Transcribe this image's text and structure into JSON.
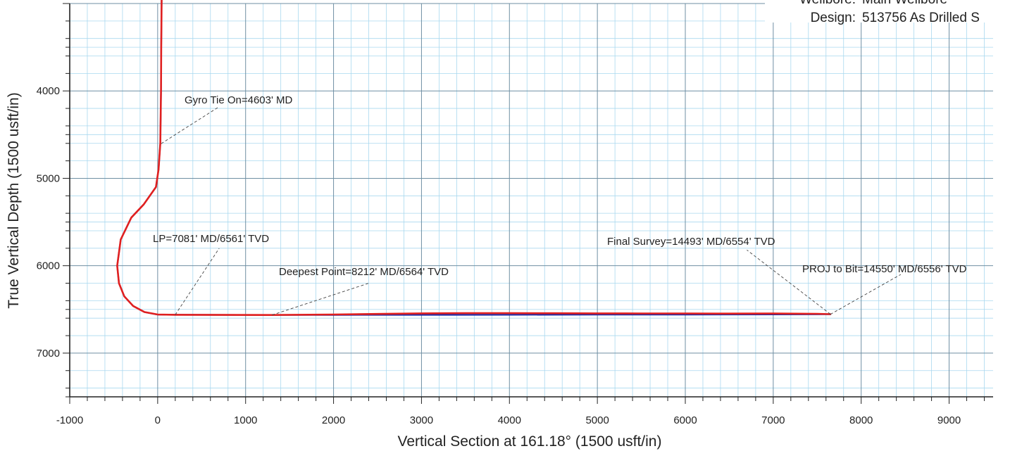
{
  "header": {
    "wellbore_label": "Wellbore:",
    "wellbore_value": "Main Wellbore",
    "design_label": "Design:",
    "design_value": "513756 As Drilled S"
  },
  "chart_data": {
    "type": "line",
    "xlabel": "Vertical Section at 161.18° (1500 usft/in)",
    "ylabel": "True Vertical Depth (1500 usft/in)",
    "xlim": [
      -1000,
      9500
    ],
    "ylim": [
      7500,
      3000
    ],
    "y_inverted": true,
    "x_ticks": [
      -1000,
      0,
      1000,
      2000,
      3000,
      4000,
      5000,
      6000,
      7000,
      8000,
      9000
    ],
    "y_ticks": [
      4000,
      5000,
      6000,
      7000
    ],
    "grid": true,
    "series": [
      {
        "color": "#1a2aa8",
        "x": [
          45,
          40,
          38,
          30,
          10,
          -20,
          -160,
          -300,
          -420,
          -460,
          -440,
          -380,
          -280,
          -150,
          0,
          200,
          1300,
          2000,
          3000,
          4000,
          5000,
          6000,
          7000,
          7650
        ],
        "y": [
          2950,
          3500,
          4000,
          4600,
          4900,
          5100,
          5300,
          5450,
          5700,
          6000,
          6200,
          6350,
          6460,
          6530,
          6560,
          6561,
          6564,
          6563,
          6562,
          6561,
          6560,
          6559,
          6557,
          6556
        ]
      },
      {
        "color": "#e02020",
        "x": [
          45,
          40,
          38,
          30,
          10,
          -20,
          -160,
          -300,
          -420,
          -460,
          -440,
          -380,
          -280,
          -150,
          0,
          200,
          1300,
          2000,
          2500,
          3000,
          3500,
          4000,
          4500,
          5000,
          5500,
          6000,
          6500,
          7000,
          7500,
          7650
        ],
        "y": [
          2950,
          3500,
          4000,
          4600,
          4900,
          5100,
          5300,
          5450,
          5700,
          6000,
          6200,
          6350,
          6460,
          6530,
          6558,
          6561,
          6564,
          6558,
          6552,
          6545,
          6543,
          6543,
          6544,
          6545,
          6546,
          6546,
          6548,
          6547,
          6550,
          6554
        ]
      }
    ],
    "annotations": [
      {
        "text": "Gyro Tie On=4603' MD",
        "point": [
          40,
          4603
        ],
        "label_anchor": [
          700,
          4180
        ]
      },
      {
        "text": "LP=7081' MD/6561' TVD",
        "point": [
          200,
          6561
        ],
        "label_anchor": [
          700,
          5800
        ]
      },
      {
        "text": "Deepest Point=8212' MD/6564' TVD",
        "point": [
          1300,
          6564
        ],
        "label_anchor": [
          2400,
          6200
        ]
      },
      {
        "text": "Final Survey=14493' MD/6554' TVD",
        "point": [
          7650,
          6554
        ],
        "label_anchor": [
          6700,
          5820
        ]
      },
      {
        "text": "PROJ to Bit=14550' MD/6556' TVD",
        "point": [
          7650,
          6556
        ],
        "label_anchor": [
          8450,
          6100
        ]
      }
    ]
  }
}
